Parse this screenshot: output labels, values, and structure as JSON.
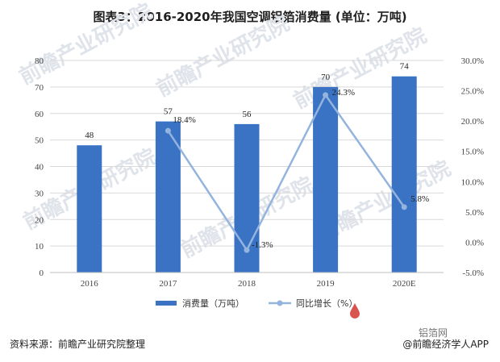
{
  "title": "图表3：2016-2020年我国空调铝箔消费量 (单位：万吨)",
  "source_text": "资料来源：前瞻产业研究院整理",
  "brand_text": "@前瞻经济学人APP",
  "brand_mark": "铝箔网",
  "watermarks": [
    "前瞻产业研究院"
  ],
  "chart_data": {
    "type": "bar",
    "categories": [
      "2016",
      "2017",
      "2018",
      "2019",
      "2020E"
    ],
    "series": [
      {
        "name": "消费量（万吨）",
        "type": "bar",
        "axis": "left",
        "values": [
          48,
          57,
          56,
          70,
          74
        ],
        "color": "#3a72c4"
      },
      {
        "name": "同比增长（%）",
        "type": "line",
        "axis": "right",
        "values": [
          null,
          18.4,
          -1.3,
          24.3,
          5.8
        ],
        "color": "#94b4de"
      }
    ],
    "left_axis": {
      "min": 0,
      "max": 80,
      "step": 10,
      "ticks": [
        "0",
        "10",
        "20",
        "30",
        "40",
        "50",
        "60",
        "70",
        "80"
      ]
    },
    "right_axis": {
      "min": -5,
      "max": 30,
      "step": 5,
      "ticks": [
        "-5.0%",
        "0.0%",
        "5.0%",
        "10.0%",
        "15.0%",
        "20.0%",
        "25.0%",
        "30.0%"
      ]
    },
    "bar_labels": [
      "48",
      "57",
      "56",
      "70",
      "74"
    ],
    "line_labels": [
      "",
      "18.4%",
      "-1.3%",
      "24.3%",
      "5.8%"
    ],
    "legend_position": "bottom",
    "grid": true
  }
}
